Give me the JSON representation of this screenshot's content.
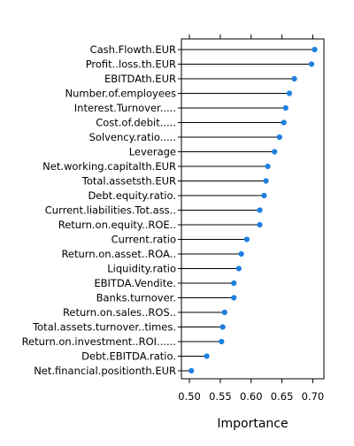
{
  "chart_data": {
    "type": "dot",
    "xlabel": "Importance",
    "xlim": [
      0.487,
      0.718
    ],
    "xticks": [
      0.5,
      0.55,
      0.6,
      0.65,
      0.7
    ],
    "xtick_labels": [
      "0.50",
      "0.55",
      "0.60",
      "0.65",
      "0.70"
    ],
    "grid": false,
    "colors": {
      "point": "#1e7fe0",
      "stem": "#000000",
      "frame": "#000000"
    },
    "categories": [
      "Cash.Flowth.EUR",
      "Profit..loss.th.EUR",
      "EBITDAth.EUR",
      "Number.of.employees",
      "Interest.Turnover.....",
      "Cost.of.debit.....",
      "Solvency.ratio.....",
      "Leverage",
      "Net.working.capitalth.EUR",
      "Total.assetsth.EUR",
      "Debt.equity.ratio.",
      "Current.liabilities.Tot.ass..",
      "Return.on.equity..ROE..",
      "Current.ratio",
      "Return.on.asset..ROA..",
      "Liquidity.ratio",
      "EBITDA.Vendite.",
      "Banks.turnover.",
      "Return.on.sales..ROS..",
      "Total.assets.turnover..times.",
      "Return.on.investment..ROI......",
      "Debt.EBITDA.ratio.",
      "Net.financial.positionth.EUR"
    ],
    "values": [
      0.703,
      0.698,
      0.67,
      0.662,
      0.656,
      0.653,
      0.646,
      0.638,
      0.627,
      0.624,
      0.621,
      0.614,
      0.614,
      0.593,
      0.584,
      0.58,
      0.572,
      0.572,
      0.557,
      0.554,
      0.552,
      0.528,
      0.503
    ]
  }
}
